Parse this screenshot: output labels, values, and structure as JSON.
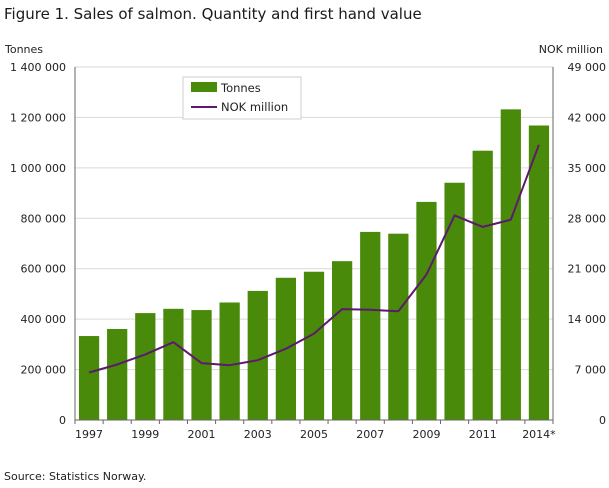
{
  "title": "Figure 1. Sales of salmon. Quantity and first hand value",
  "source": "Source: Statistics Norway.",
  "chart_data": {
    "type": "bar+line",
    "title": "Figure 1. Sales of salmon. Quantity and first hand value",
    "y_left_label": "Tonnes",
    "y_right_label": "NOK million",
    "categories": [
      "1997",
      "1998",
      "1999",
      "2000",
      "2001",
      "2002",
      "2003",
      "2004",
      "2005",
      "2006",
      "2007",
      "2008",
      "2009",
      "2010",
      "2011",
      "2012",
      "2014*"
    ],
    "x_tick_labels": [
      "1997",
      "1999",
      "2001",
      "2003",
      "2005",
      "2007",
      "2009",
      "2011",
      "2014*"
    ],
    "y_left_ticks": [
      "0",
      "200 000",
      "400 000",
      "600 000",
      "800 000",
      "1 000 000",
      "1 200 000",
      "1 400 000"
    ],
    "y_right_ticks": [
      "0",
      "7 000",
      "14 000",
      "21 000",
      "28 000",
      "35 000",
      "42 000",
      "49 000"
    ],
    "ylim_left": [
      0,
      1400000
    ],
    "ylim_right": [
      0,
      49000
    ],
    "grid": true,
    "legend_position": "top-left inside plot",
    "series": [
      {
        "name": "Tonnes",
        "type": "bar",
        "axis": "left",
        "color": "#4a8a0b",
        "values": [
          333000,
          361000,
          424000,
          441000,
          436000,
          466000,
          512000,
          564000,
          588000,
          630000,
          746000,
          739000,
          865000,
          941000,
          1068000,
          1232000,
          1168000
        ]
      },
      {
        "name": "NOK million",
        "type": "line",
        "axis": "right",
        "color": "#5b1a6b",
        "values": [
          6600,
          7700,
          9100,
          10800,
          7900,
          7600,
          8300,
          9900,
          12000,
          15400,
          15300,
          15100,
          20200,
          28400,
          26800,
          27800,
          38200
        ]
      }
    ]
  }
}
